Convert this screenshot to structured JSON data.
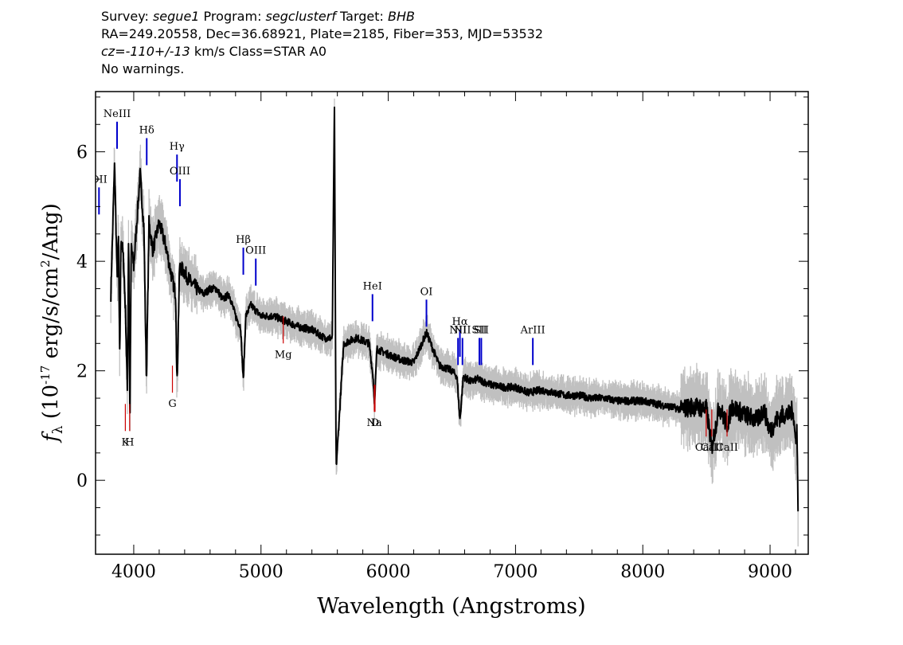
{
  "header": {
    "line1": {
      "p1": "Survey: ",
      "survey": "segue1",
      "p2": " Program: ",
      "program": "segclusterf",
      "p3": " Target: ",
      "target": "BHB"
    },
    "line2": "RA=249.20558, Dec=36.68921, Plate=2185, Fiber=353, MJD=53532",
    "line3": {
      "cz": "cz=-110+/-13",
      "rest": " km/s Class=STAR A0"
    },
    "line4": "No warnings."
  },
  "chart_data": {
    "type": "line",
    "xlabel": "Wavelength (Angstroms)",
    "ylabel": "fλ (10⁻¹⁷ erg/s/cm²/Ang)",
    "xlim": [
      3700,
      9300
    ],
    "ylim": [
      -1.35,
      7.1
    ],
    "xticks": [
      4000,
      5000,
      6000,
      7000,
      8000,
      9000
    ],
    "yticks": [
      0,
      2,
      4,
      6
    ],
    "grid": false,
    "colors": {
      "flux": "#000000",
      "error_band": "#c0c0c0",
      "emission": "#0000cc",
      "absorption": "#cc0000"
    },
    "series": [
      {
        "role": "flux",
        "x": [
          3820,
          3850,
          3870,
          3880,
          3890,
          3900,
          3920,
          3935,
          3950,
          3960,
          3970,
          3980,
          4000,
          4050,
          4080,
          4100,
          4120,
          4150,
          4200,
          4250,
          4300,
          4330,
          4340,
          4360,
          4400,
          4450,
          4500,
          4550,
          4600,
          4650,
          4700,
          4750,
          4800,
          4840,
          4861,
          4880,
          4920,
          5000,
          5100,
          5200,
          5300,
          5400,
          5500,
          5560,
          5577,
          5590,
          5650,
          5750,
          5850,
          5880,
          5893,
          5910,
          6000,
          6100,
          6200,
          6300,
          6400,
          6500,
          6540,
          6563,
          6590,
          6650,
          6700,
          6800,
          6900,
          7000,
          7100,
          7200,
          7300,
          7400,
          7500,
          7600,
          7700,
          7800,
          7900,
          8000,
          8100,
          8200,
          8300,
          8400,
          8500,
          8542,
          8600,
          8662,
          8700,
          8800,
          8900,
          8950,
          9000,
          9050,
          9100,
          9150,
          9180,
          9200,
          9210,
          9220
        ],
        "y": [
          3.4,
          5.8,
          3.6,
          4.4,
          2.2,
          4.5,
          4.0,
          3.1,
          1.6,
          4.6,
          0.9,
          4.3,
          3.9,
          5.6,
          4.6,
          1.8,
          4.7,
          4.2,
          4.7,
          4.3,
          3.7,
          3.4,
          1.7,
          3.9,
          3.8,
          3.6,
          3.5,
          3.4,
          3.5,
          3.5,
          3.3,
          3.4,
          3.0,
          2.8,
          1.8,
          3.0,
          3.2,
          3.0,
          3.0,
          2.9,
          2.8,
          2.75,
          2.6,
          2.6,
          6.9,
          0.2,
          2.5,
          2.6,
          2.5,
          1.9,
          1.4,
          2.4,
          2.3,
          2.2,
          2.15,
          2.7,
          2.1,
          2.0,
          1.9,
          1.1,
          1.9,
          1.8,
          1.85,
          1.75,
          1.7,
          1.7,
          1.6,
          1.65,
          1.6,
          1.55,
          1.55,
          1.5,
          1.5,
          1.45,
          1.45,
          1.45,
          1.4,
          1.35,
          1.3,
          1.35,
          1.3,
          0.6,
          1.35,
          1.0,
          1.35,
          1.2,
          1.1,
          1.3,
          0.9,
          1.1,
          1.2,
          1.2,
          1.3,
          0.7,
          1.0,
          -0.4
        ]
      }
    ],
    "emission_lines": [
      {
        "label": "OII",
        "x": 3727,
        "y": 5.35
      },
      {
        "label": "NeIII",
        "x": 3869,
        "y": 6.55
      },
      {
        "label": "Hδ",
        "x": 4102,
        "y": 6.25
      },
      {
        "label": "Hγ",
        "x": 4340,
        "y": 5.95
      },
      {
        "label": "OIII",
        "x": 4363,
        "y": 5.5
      },
      {
        "label": "Hβ",
        "x": 4861,
        "y": 4.25
      },
      {
        "label": "OIII",
        "x": 4959,
        "y": 4.05
      },
      {
        "label": "HeI",
        "x": 5876,
        "y": 3.4
      },
      {
        "label": "OI",
        "x": 6300,
        "y": 3.3
      },
      {
        "label": "NII",
        "x": 6548,
        "y": 2.6
      },
      {
        "label": "Hα",
        "x": 6563,
        "y": 2.75
      },
      {
        "label": "NII",
        "x": 6583,
        "y": 2.6
      },
      {
        "label": "SII",
        "x": 6716,
        "y": 2.6
      },
      {
        "label": "SII",
        "x": 6731,
        "y": 2.6
      },
      {
        "label": "ArIII",
        "x": 7136,
        "y": 2.6
      }
    ],
    "absorption_lines": [
      {
        "label": "K",
        "x": 3934,
        "y": 0.9
      },
      {
        "label": "H",
        "x": 3968,
        "y": 0.9
      },
      {
        "label": "G",
        "x": 4304,
        "y": 1.6
      },
      {
        "label": "Mg",
        "x": 5175,
        "y": 2.5
      },
      {
        "label": "Na",
        "x": 5890,
        "y": 1.25
      },
      {
        "label": "D",
        "x": 5896,
        "y": 1.25
      },
      {
        "label": "CaII",
        "x": 8498,
        "y": 0.8
      },
      {
        "label": "CaII",
        "x": 8542,
        "y": 0.8
      },
      {
        "label": "CaII",
        "x": 8662,
        "y": 0.8
      }
    ]
  }
}
